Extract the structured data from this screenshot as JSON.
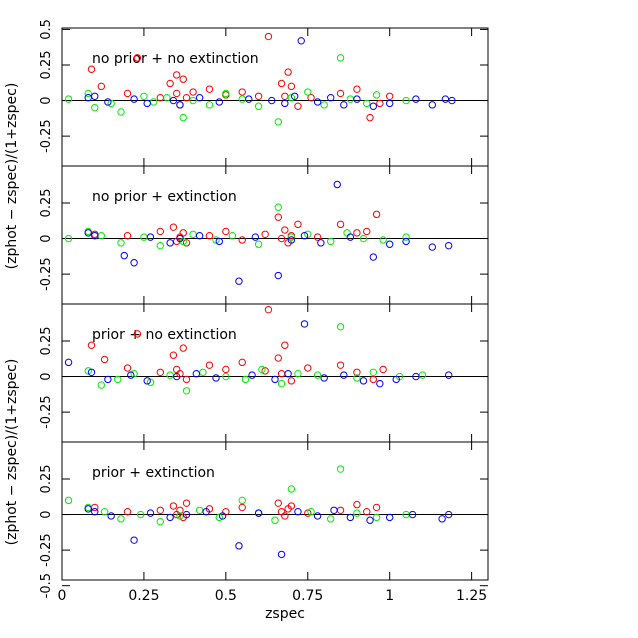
{
  "chart_data": [
    {
      "type": "scatter",
      "title": "no prior + no extinction",
      "xlim": [
        0,
        1.3
      ],
      "ylim": [
        -0.46,
        0.51
      ],
      "yticks": [
        -0.25,
        0,
        0.25,
        0.5
      ],
      "series": [
        {
          "color": "#ff0000",
          "x": [
            0.09,
            0.12,
            0.2,
            0.23,
            0.3,
            0.33,
            0.35,
            0.35,
            0.36,
            0.37,
            0.38,
            0.4,
            0.45,
            0.5,
            0.55,
            0.6,
            0.63,
            0.67,
            0.68,
            0.69,
            0.7,
            0.72,
            0.76,
            0.85,
            0.9,
            0.94,
            0.97,
            1.0
          ],
          "values": [
            0.22,
            0.1,
            0.05,
            0.3,
            0.02,
            0.12,
            0.05,
            0.18,
            -0.03,
            0.15,
            0.02,
            0.06,
            0.08,
            0.04,
            0.06,
            0.03,
            0.45,
            0.12,
            0.03,
            0.2,
            0.1,
            -0.04,
            0.02,
            0.05,
            0.08,
            -0.12,
            -0.02,
            0.03
          ]
        },
        {
          "color": "#00ee00",
          "x": [
            0.02,
            0.08,
            0.1,
            0.15,
            0.18,
            0.25,
            0.28,
            0.32,
            0.37,
            0.4,
            0.45,
            0.5,
            0.55,
            0.6,
            0.66,
            0.7,
            0.75,
            0.8,
            0.85,
            0.88,
            0.93,
            0.96,
            1.05
          ],
          "values": [
            0.01,
            0.05,
            -0.05,
            -0.02,
            -0.08,
            0.03,
            -0.01,
            0.02,
            -0.12,
            0.0,
            -0.03,
            0.05,
            0.01,
            -0.04,
            -0.15,
            0.02,
            0.06,
            -0.03,
            0.3,
            0.01,
            -0.02,
            0.04,
            0.0
          ]
        },
        {
          "color": "#0000ff",
          "x": [
            0.08,
            0.1,
            0.14,
            0.22,
            0.26,
            0.34,
            0.36,
            0.42,
            0.48,
            0.57,
            0.64,
            0.68,
            0.71,
            0.73,
            0.78,
            0.82,
            0.86,
            0.9,
            0.95,
            1.0,
            1.08,
            1.13,
            1.17,
            1.19
          ],
          "values": [
            0.02,
            0.03,
            -0.01,
            0.01,
            -0.02,
            0.0,
            -0.03,
            0.02,
            -0.01,
            0.01,
            0.0,
            -0.02,
            0.03,
            0.42,
            -0.01,
            0.02,
            -0.03,
            0.01,
            -0.04,
            -0.02,
            0.01,
            -0.03,
            0.01,
            0.0
          ]
        }
      ]
    },
    {
      "type": "scatter",
      "title": "no prior + extinction",
      "ylabel": "(zphot − zspec)/(1+zspec)",
      "xlim": [
        0,
        1.3
      ],
      "ylim": [
        -0.46,
        0.51
      ],
      "yticks": [
        -0.25,
        0,
        0.25
      ],
      "series": [
        {
          "color": "#ff0000",
          "x": [
            0.1,
            0.2,
            0.3,
            0.34,
            0.35,
            0.36,
            0.37,
            0.38,
            0.45,
            0.5,
            0.55,
            0.62,
            0.66,
            0.67,
            0.68,
            0.69,
            0.7,
            0.72,
            0.78,
            0.85,
            0.9,
            0.93,
            0.96
          ],
          "values": [
            0.03,
            0.02,
            0.05,
            0.08,
            -0.02,
            0.01,
            0.04,
            -0.03,
            0.02,
            0.05,
            -0.01,
            0.03,
            0.15,
            0.0,
            0.06,
            -0.03,
            0.02,
            0.1,
            0.01,
            0.1,
            0.04,
            0.05,
            0.17
          ]
        },
        {
          "color": "#00ee00",
          "x": [
            0.02,
            0.08,
            0.12,
            0.18,
            0.25,
            0.3,
            0.37,
            0.4,
            0.47,
            0.52,
            0.6,
            0.66,
            0.7,
            0.75,
            0.82,
            0.87,
            0.92,
            0.98,
            1.05
          ],
          "values": [
            0.0,
            0.05,
            0.02,
            -0.03,
            0.01,
            -0.05,
            -0.02,
            0.03,
            -0.01,
            0.02,
            -0.04,
            0.22,
            0.01,
            0.03,
            -0.02,
            0.04,
            0.0,
            -0.01,
            0.01
          ]
        },
        {
          "color": "#0000ff",
          "x": [
            0.08,
            0.1,
            0.19,
            0.22,
            0.27,
            0.33,
            0.36,
            0.42,
            0.48,
            0.54,
            0.59,
            0.66,
            0.7,
            0.74,
            0.79,
            0.84,
            0.88,
            0.95,
            1.0,
            1.05,
            1.13,
            1.18
          ],
          "values": [
            0.04,
            0.02,
            -0.12,
            -0.17,
            0.01,
            -0.03,
            0.0,
            0.02,
            -0.02,
            -0.3,
            0.01,
            -0.26,
            -0.01,
            0.02,
            -0.03,
            0.38,
            0.01,
            -0.13,
            -0.04,
            -0.02,
            -0.06,
            -0.05
          ]
        }
      ]
    },
    {
      "type": "scatter",
      "title": "prior + no extinction",
      "xlim": [
        0,
        1.3
      ],
      "ylim": [
        -0.46,
        0.51
      ],
      "yticks": [
        -0.25,
        0,
        0.25
      ],
      "series": [
        {
          "color": "#ff0000",
          "x": [
            0.09,
            0.13,
            0.2,
            0.23,
            0.3,
            0.34,
            0.35,
            0.36,
            0.37,
            0.38,
            0.45,
            0.5,
            0.55,
            0.62,
            0.63,
            0.66,
            0.67,
            0.68,
            0.7,
            0.75,
            0.85,
            0.9,
            0.95,
            0.98
          ],
          "values": [
            0.22,
            0.12,
            0.06,
            0.3,
            0.03,
            0.15,
            0.05,
            0.02,
            0.2,
            -0.02,
            0.08,
            0.05,
            0.1,
            0.04,
            0.47,
            0.13,
            0.02,
            0.22,
            -0.03,
            0.06,
            0.08,
            0.03,
            -0.02,
            0.05
          ]
        },
        {
          "color": "#00ee00",
          "x": [
            0.08,
            0.12,
            0.17,
            0.22,
            0.27,
            0.33,
            0.38,
            0.43,
            0.5,
            0.56,
            0.61,
            0.67,
            0.72,
            0.78,
            0.85,
            0.9,
            0.95,
            1.03,
            1.1
          ],
          "values": [
            0.04,
            -0.06,
            -0.02,
            0.02,
            -0.04,
            0.01,
            -0.1,
            0.03,
            0.0,
            -0.02,
            0.05,
            -0.05,
            0.02,
            0.01,
            0.35,
            -0.01,
            0.03,
            0.0,
            0.01
          ]
        },
        {
          "color": "#0000ff",
          "x": [
            0.02,
            0.09,
            0.14,
            0.21,
            0.26,
            0.35,
            0.41,
            0.47,
            0.58,
            0.65,
            0.69,
            0.74,
            0.8,
            0.86,
            0.92,
            0.97,
            1.02,
            1.08,
            1.18
          ],
          "values": [
            0.1,
            0.03,
            -0.02,
            0.01,
            -0.03,
            0.0,
            0.02,
            -0.01,
            0.01,
            -0.02,
            0.02,
            0.37,
            -0.01,
            0.01,
            -0.03,
            -0.05,
            -0.02,
            0.0,
            0.01
          ]
        }
      ]
    },
    {
      "type": "scatter",
      "title": "prior + extinction",
      "ylabel": "(zphot − zspec)/(1+zspec)",
      "xlabel": "zspec",
      "xlim": [
        0,
        1.3
      ],
      "ylim": [
        -0.46,
        0.51
      ],
      "yticks": [
        -0.5,
        -0.25,
        0,
        0.25
      ],
      "xticks": [
        0,
        0.25,
        0.5,
        0.75,
        1,
        1.25
      ],
      "series": [
        {
          "color": "#ff0000",
          "x": [
            0.1,
            0.2,
            0.3,
            0.34,
            0.35,
            0.36,
            0.37,
            0.38,
            0.45,
            0.5,
            0.55,
            0.6,
            0.66,
            0.67,
            0.68,
            0.69,
            0.7,
            0.75,
            0.85,
            0.9,
            0.93,
            0.96
          ],
          "values": [
            0.05,
            0.02,
            0.03,
            0.06,
            0.0,
            0.03,
            -0.02,
            0.08,
            0.04,
            0.02,
            0.05,
            0.01,
            0.08,
            0.02,
            -0.01,
            0.04,
            0.06,
            0.01,
            0.03,
            0.07,
            0.02,
            0.05
          ]
        },
        {
          "color": "#00ee00",
          "x": [
            0.02,
            0.08,
            0.13,
            0.18,
            0.24,
            0.3,
            0.36,
            0.42,
            0.48,
            0.55,
            0.6,
            0.65,
            0.7,
            0.76,
            0.82,
            0.85,
            0.9,
            0.96,
            1.05
          ],
          "values": [
            0.1,
            0.05,
            0.02,
            -0.03,
            0.0,
            -0.05,
            -0.01,
            0.03,
            -0.02,
            0.1,
            0.01,
            -0.04,
            0.18,
            0.02,
            -0.03,
            0.32,
            0.01,
            -0.02,
            0.0
          ]
        },
        {
          "color": "#0000ff",
          "x": [
            0.08,
            0.1,
            0.15,
            0.22,
            0.27,
            0.33,
            0.38,
            0.44,
            0.49,
            0.54,
            0.6,
            0.67,
            0.72,
            0.78,
            0.83,
            0.88,
            0.94,
            1.0,
            1.07,
            1.16,
            1.18
          ],
          "values": [
            0.04,
            0.02,
            -0.01,
            -0.18,
            0.01,
            -0.02,
            0.0,
            0.02,
            -0.01,
            -0.22,
            0.01,
            -0.28,
            0.02,
            -0.01,
            0.03,
            -0.02,
            -0.04,
            -0.02,
            0.0,
            -0.03,
            0.0
          ]
        }
      ]
    }
  ]
}
